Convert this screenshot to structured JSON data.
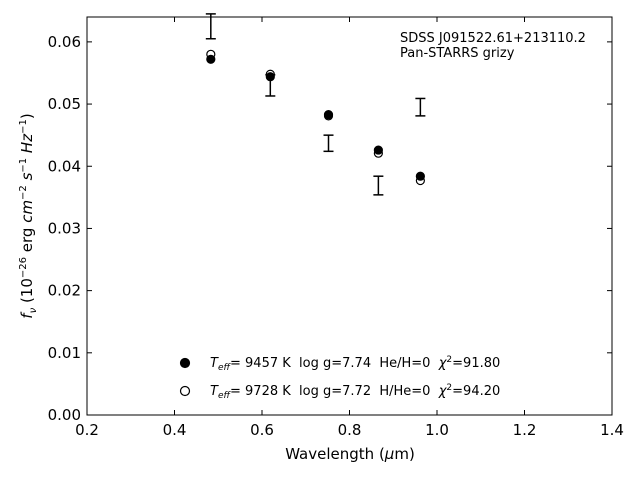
{
  "chart_data": {
    "type": "scatter",
    "xlabel": "Wavelength (μm)",
    "ylabel": "fν (10⁻²⁶ erg cm⁻² s⁻¹ Hz⁻¹)",
    "xlim": [
      0.2,
      1.4
    ],
    "ylim": [
      0.0,
      0.064
    ],
    "x_ticks": [
      "0.2",
      "0.4",
      "0.6",
      "0.8",
      "1.0",
      "1.2",
      "1.4"
    ],
    "y_ticks": [
      "0.00",
      "0.01",
      "0.02",
      "0.03",
      "0.04",
      "0.05",
      "0.06"
    ],
    "grid": false,
    "annotation": [
      "SDSS J091522.61+213110.2",
      "Pan-STARRS grizy"
    ],
    "observed": [
      {
        "x": 0.483,
        "y": 0.0625,
        "err": 0.002
      },
      {
        "x": 0.619,
        "y": 0.053,
        "err": 0.0017
      },
      {
        "x": 0.752,
        "y": 0.0437,
        "err": 0.0013
      },
      {
        "x": 0.866,
        "y": 0.0369,
        "err": 0.0015
      },
      {
        "x": 0.962,
        "y": 0.0495,
        "err": 0.0014
      }
    ],
    "series": [
      {
        "name": "T_eff= 9457 K log g=7.74 He/H=0 χ²=91.80",
        "marker": "filled-circle",
        "x": [
          0.483,
          0.619,
          0.752,
          0.866,
          0.962
        ],
        "y": [
          0.0572,
          0.0544,
          0.0483,
          0.0426,
          0.0384
        ]
      },
      {
        "name": "T_eff= 9728 K log g=7.72 H/He=0 χ²=94.20",
        "marker": "open-circle",
        "x": [
          0.483,
          0.619,
          0.752,
          0.866,
          0.962
        ],
        "y": [
          0.058,
          0.0548,
          0.0481,
          0.0421,
          0.0377
        ]
      }
    ],
    "legend": [
      {
        "teff_value": "=  9457 K",
        "rest": "  log g=7.74  He/H=0  ",
        "chi2": "=91.80"
      },
      {
        "teff_value": "=  9728 K",
        "rest": "  log g=7.72  H/He=0  ",
        "chi2": "=94.20"
      }
    ],
    "legend_position": "lower-center"
  }
}
